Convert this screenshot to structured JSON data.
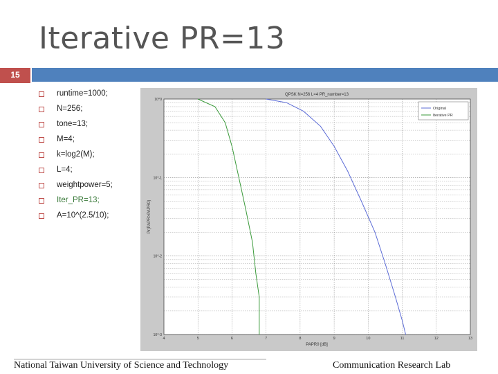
{
  "slide": {
    "title": "Iterative PR=13",
    "number": "15",
    "bullets": [
      {
        "text": "runtime=1000;",
        "highlight": false
      },
      {
        "text": "N=256;",
        "highlight": false
      },
      {
        "text": "tone=13;",
        "highlight": false
      },
      {
        "text": "M=4;",
        "highlight": false
      },
      {
        "text": "k=log2(M);",
        "highlight": false
      },
      {
        "text": "L=4;",
        "highlight": false
      },
      {
        "text": "weightpower=5;",
        "highlight": false
      },
      {
        "text": "Iter_PR=13;",
        "highlight": true
      },
      {
        "text": "A=10^(2.5/10);",
        "highlight": false
      }
    ],
    "footer_left": "National Taiwan University of Science and Technology",
    "footer_right": "Communication Research Lab"
  },
  "colors": {
    "accent_red": "#c0504d",
    "accent_blue": "#4f81bd",
    "series_orig": "#5b6bd6",
    "series_iter": "#3a9a3a"
  },
  "chart_data": {
    "type": "line",
    "title": "QPSK N=256 L=4 PR_number=13",
    "xlabel": "PAPR0 [dB]",
    "ylabel": "Pr(PAPR>PAPR0)",
    "xlim": [
      4,
      13
    ],
    "ylim_exp": [
      -3,
      0
    ],
    "x_ticks": [
      "4",
      "5",
      "6",
      "7",
      "8",
      "9",
      "10",
      "11",
      "12",
      "13"
    ],
    "y_ticks": [
      "10^0",
      "10^-1",
      "10^-2",
      "10^-3"
    ],
    "y_scale": "log",
    "legend": [
      "Original",
      "Iterative PR"
    ],
    "legend_position": "top-right",
    "grid": true,
    "series": [
      {
        "name": "Original",
        "x": [
          7.0,
          7.6,
          8.1,
          8.6,
          9.0,
          9.4,
          9.8,
          10.2,
          10.5,
          10.8,
          11.0,
          11.1
        ],
        "y": [
          1.0,
          0.9,
          0.7,
          0.45,
          0.25,
          0.12,
          0.05,
          0.02,
          0.008,
          0.003,
          0.0015,
          0.001
        ]
      },
      {
        "name": "Iterative PR",
        "x": [
          5.0,
          5.5,
          5.8,
          6.0,
          6.2,
          6.4,
          6.6,
          6.7,
          6.8,
          6.8
        ],
        "y": [
          1.0,
          0.8,
          0.5,
          0.25,
          0.1,
          0.04,
          0.015,
          0.006,
          0.003,
          0.001
        ]
      }
    ]
  }
}
